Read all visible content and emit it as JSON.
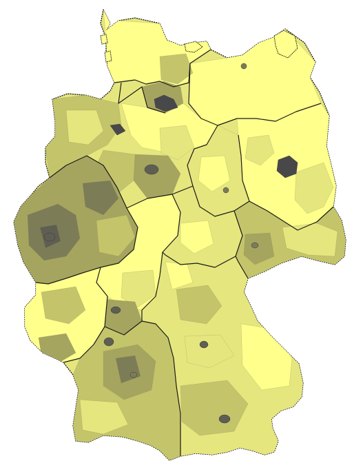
{
  "map": {
    "palette": {
      "level_1": "#ffff8c",
      "level_2": "#e6e67f",
      "level_3": "#c4c46b",
      "level_4": "#a5a560",
      "level_5": "#7c7c57",
      "level_6": "#5e5e52",
      "level_7": "#48484a",
      "border": "#1a1a1a",
      "background": "#ffffff"
    }
  }
}
